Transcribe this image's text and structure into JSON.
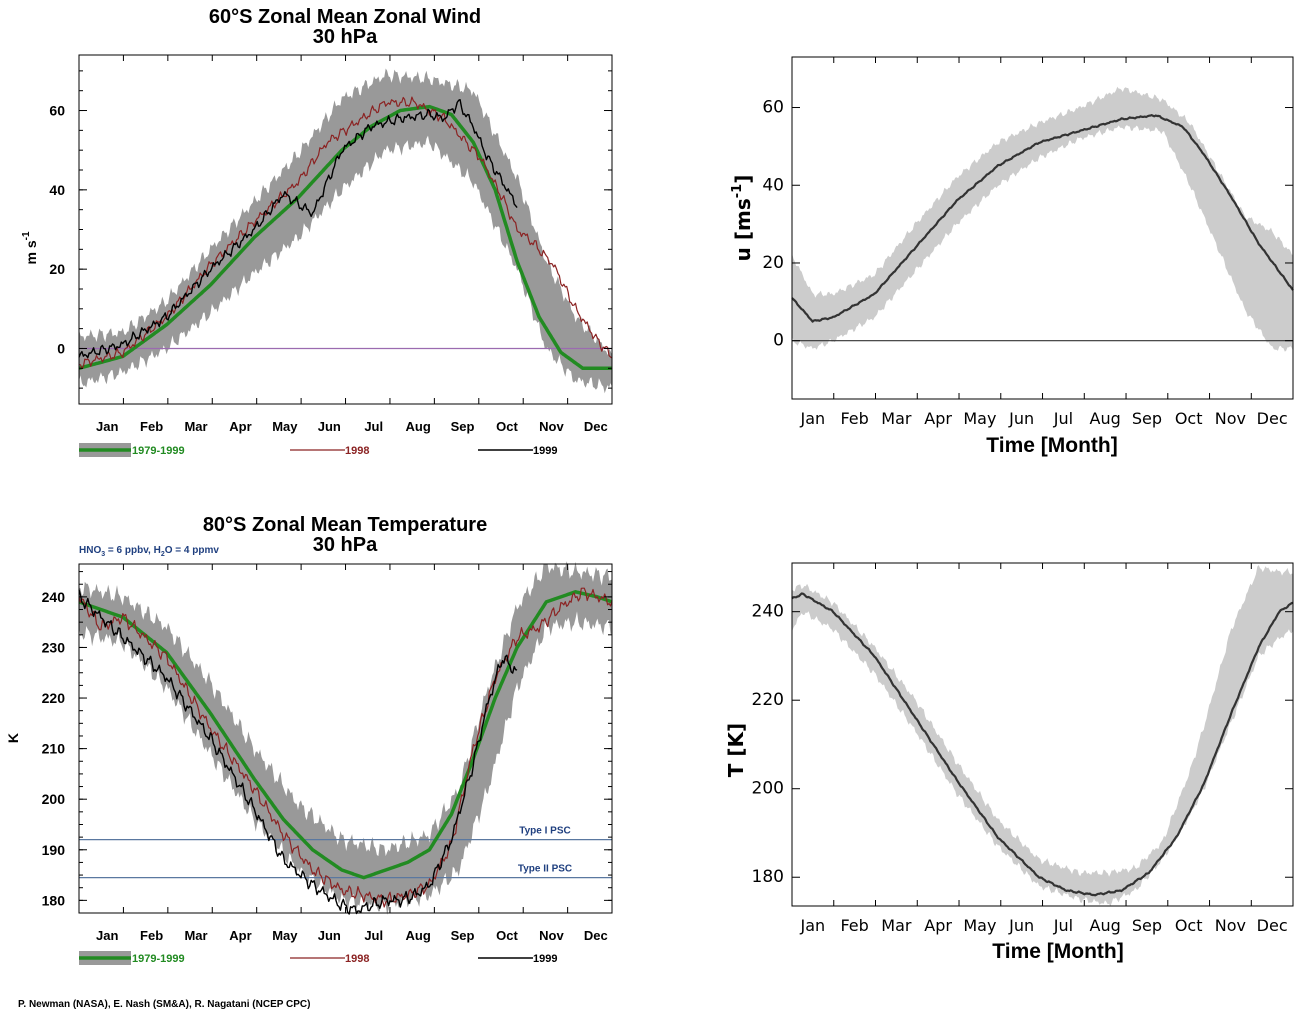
{
  "colors": {
    "band_dark": "#999999",
    "band_light": "#cccccc",
    "green": "#228b22",
    "red": "#8b2323",
    "black": "#000000",
    "hline_wind": "#9b6bb0",
    "psc_line": "#5a78a0",
    "note_blue": "#1f3f7f",
    "axis": "#000000"
  },
  "credit": "P. Newman (NASA), E. Nash (SM&A), R. Nagatani (NCEP CPC)",
  "chart_data": [
    {
      "type": "line",
      "title": "60°S Zonal Mean Zonal Wind",
      "subtitle": "30 hPa",
      "ylabel": "m s-1",
      "ylabel_main": "m s",
      "ylabel_sup": "-1",
      "xlabel": "",
      "xlim": [
        0,
        365
      ],
      "ylim": [
        -14,
        74
      ],
      "yticks": [
        0,
        20,
        40,
        60
      ],
      "categories": [
        "Jan",
        "Feb",
        "Mar",
        "Apr",
        "May",
        "Jun",
        "Jul",
        "Aug",
        "Sep",
        "Oct",
        "Nov",
        "Dec"
      ],
      "hline": 0,
      "legend": [
        "1979-1999",
        "1998",
        "1999"
      ],
      "band": {
        "x": [
          0,
          30,
          60,
          90,
          120,
          150,
          180,
          210,
          240,
          270,
          300,
          320,
          340,
          365
        ],
        "lo": [
          -9,
          -6,
          0,
          9,
          19,
          28,
          40,
          50,
          52,
          42,
          20,
          0,
          -8,
          -10
        ],
        "hi": [
          3,
          4,
          12,
          25,
          37,
          49,
          63,
          69,
          68,
          65,
          43,
          22,
          8,
          -2
        ]
      },
      "series": [
        {
          "name": "1979-1999",
          "x": [
            0,
            30,
            60,
            90,
            120,
            150,
            180,
            200,
            220,
            240,
            255,
            270,
            285,
            300,
            315,
            330,
            345,
            360,
            365
          ],
          "values": [
            -5,
            -2,
            6,
            16,
            28,
            38,
            50,
            56,
            60,
            61,
            59,
            52,
            40,
            22,
            8,
            -1,
            -5,
            -5,
            -5
          ]
        },
        {
          "name": "1998",
          "x": [
            0,
            30,
            60,
            90,
            120,
            150,
            170,
            190,
            210,
            230,
            250,
            260,
            275,
            290,
            300,
            310,
            325,
            340,
            355,
            365
          ],
          "values": [
            -4,
            -1,
            8,
            21,
            32,
            42,
            52,
            57,
            62,
            62,
            58,
            54,
            48,
            38,
            30,
            27,
            21,
            10,
            2,
            -2
          ]
        },
        {
          "name": "1999",
          "x": [
            0,
            30,
            60,
            90,
            120,
            140,
            160,
            180,
            200,
            220,
            240,
            250,
            260,
            270,
            280,
            290,
            300
          ],
          "values": [
            -2,
            1,
            8,
            20,
            30,
            39,
            34,
            50,
            56,
            58,
            59,
            58,
            62,
            56,
            48,
            42,
            36
          ]
        }
      ]
    },
    {
      "type": "area",
      "title": "",
      "xlabel": "Time [Month]",
      "ylabel": "u [ms-1]",
      "ylabel_main": "u [ms",
      "ylabel_sup": "-1",
      "ylabel_close": "]",
      "xlim": [
        0,
        365
      ],
      "ylim": [
        -15,
        73
      ],
      "yticks": [
        0,
        20,
        40,
        60
      ],
      "categories": [
        "Jan",
        "Feb",
        "Mar",
        "Apr",
        "May",
        "Jun",
        "Jul",
        "Aug",
        "Sep",
        "Oct",
        "Nov",
        "Dec"
      ],
      "hline": 0,
      "band": {
        "x": [
          0,
          15,
          30,
          60,
          90,
          120,
          150,
          180,
          210,
          240,
          270,
          290,
          310,
          330,
          350,
          365
        ],
        "lo": [
          0,
          -2,
          0,
          6,
          18,
          30,
          40,
          47,
          52,
          55,
          54,
          40,
          24,
          8,
          -2,
          -2
        ],
        "hi": [
          22,
          12,
          12,
          17,
          30,
          42,
          51,
          56,
          60,
          65,
          62,
          56,
          44,
          32,
          28,
          22
        ]
      },
      "series": [
        {
          "name": "",
          "x": [
            0,
            15,
            30,
            60,
            90,
            120,
            150,
            180,
            210,
            240,
            265,
            285,
            300,
            320,
            340,
            365
          ],
          "values": [
            11,
            5,
            6,
            12,
            24,
            36,
            45,
            51,
            54,
            57,
            58,
            55,
            48,
            37,
            25,
            13
          ]
        }
      ]
    },
    {
      "type": "line",
      "title": "80°S Zonal Mean Temperature",
      "subtitle": "30 hPa",
      "note": "HNO3 = 6 ppbv, H2O = 4 ppmv",
      "note_parts": [
        "HNO",
        "3",
        " = 6 ppbv, H",
        "2",
        "O = 4 ppmv"
      ],
      "ylabel": "K",
      "xlabel": "",
      "xlim": [
        0,
        365
      ],
      "ylim": [
        177.5,
        246.5
      ],
      "yticks": [
        180,
        190,
        200,
        210,
        220,
        230,
        240
      ],
      "categories": [
        "Jan",
        "Feb",
        "Mar",
        "Apr",
        "May",
        "Jun",
        "Jul",
        "Aug",
        "Sep",
        "Oct",
        "Nov",
        "Dec"
      ],
      "hlines": [
        {
          "value": 192,
          "label": "Type I PSC"
        },
        {
          "value": 184.5,
          "label": "Type II PSC"
        }
      ],
      "legend": [
        "1979-1999",
        "1998",
        "1999"
      ],
      "band": {
        "x": [
          0,
          30,
          60,
          90,
          120,
          150,
          180,
          210,
          240,
          260,
          280,
          300,
          320,
          340,
          365
        ],
        "lo": [
          233,
          231,
          222,
          209,
          196,
          186,
          180,
          179,
          181,
          186,
          202,
          222,
          234,
          235,
          234
        ],
        "hi": [
          242,
          240,
          234,
          223,
          210,
          199,
          192,
          190,
          193,
          202,
          222,
          238,
          246,
          245,
          244
        ]
      },
      "series": [
        {
          "name": "1979-1999",
          "x": [
            0,
            30,
            60,
            90,
            120,
            140,
            160,
            180,
            195,
            210,
            225,
            240,
            255,
            270,
            285,
            300,
            320,
            340,
            355,
            365
          ],
          "values": [
            239,
            236,
            229,
            217,
            204,
            196,
            190,
            186,
            184.5,
            186,
            187.5,
            190,
            197,
            208,
            220,
            230,
            239,
            241,
            240,
            239
          ]
        },
        {
          "name": "1998",
          "x": [
            0,
            15,
            30,
            60,
            90,
            120,
            140,
            160,
            180,
            195,
            210,
            225,
            240,
            255,
            270,
            285,
            300,
            315,
            330,
            345,
            365
          ],
          "values": [
            240,
            234,
            236,
            228,
            214,
            202,
            193,
            186,
            182,
            181,
            180,
            181,
            183,
            191,
            210,
            224,
            232,
            234,
            238,
            241,
            239
          ]
        },
        {
          "name": "1999",
          "x": [
            0,
            30,
            60,
            90,
            120,
            140,
            160,
            170,
            180,
            190,
            200,
            210,
            220,
            230,
            240,
            255,
            270,
            280,
            290,
            300
          ],
          "values": [
            240,
            232,
            224,
            212,
            198,
            188,
            183,
            181,
            179,
            178,
            179,
            180,
            180,
            181,
            183,
            192,
            207,
            219,
            228,
            225
          ]
        }
      ]
    },
    {
      "type": "area",
      "title": "",
      "xlabel": "Time [Month]",
      "ylabel": "T [K]",
      "xlim": [
        0,
        365
      ],
      "ylim": [
        173.5,
        251
      ],
      "yticks": [
        180,
        200,
        220,
        240
      ],
      "categories": [
        "Jan",
        "Feb",
        "Mar",
        "Apr",
        "May",
        "Jun",
        "Jul",
        "Aug",
        "Sep",
        "Oct",
        "Nov",
        "Dec"
      ],
      "band": {
        "x": [
          0,
          8,
          30,
          60,
          90,
          120,
          150,
          180,
          210,
          230,
          250,
          270,
          290,
          300,
          320,
          340,
          355,
          365
        ],
        "lo": [
          236,
          240,
          236,
          226,
          213,
          199,
          187,
          178,
          175,
          174,
          177,
          184,
          194,
          200,
          215,
          230,
          234,
          236
        ],
        "hi": [
          245,
          246,
          242,
          232,
          220,
          206,
          193,
          184,
          181,
          181,
          182,
          188,
          204,
          214,
          236,
          250,
          249,
          249
        ]
      },
      "series": [
        {
          "name": "",
          "x": [
            0,
            8,
            30,
            60,
            90,
            120,
            150,
            180,
            200,
            220,
            240,
            260,
            280,
            300,
            320,
            340,
            355,
            365
          ],
          "values": [
            243,
            244,
            240,
            230,
            216,
            202,
            189,
            180,
            177,
            176,
            177,
            181,
            189,
            201,
            217,
            232,
            240,
            242
          ]
        }
      ]
    }
  ]
}
